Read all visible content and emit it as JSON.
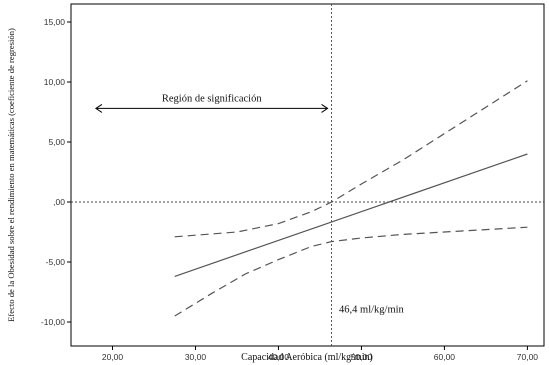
{
  "chart_data": {
    "type": "line",
    "title": "",
    "xlabel": "Capacidad Aeróbica (ml/kg/min)",
    "ylabel": "Efecto de la Obesidad sobre el rendimiento en matemáticas (coeficiente de regresión)",
    "xlim": [
      15,
      72
    ],
    "ylim": [
      -12,
      16.5
    ],
    "x_ticks": [
      20,
      30,
      40,
      50,
      60,
      70
    ],
    "x_tick_labels": [
      "20,00",
      "30,00",
      "40,00",
      "50,00",
      "60,00",
      "70,00"
    ],
    "y_ticks": [
      -10,
      -5,
      0,
      5,
      10,
      15
    ],
    "y_tick_labels": [
      "-10,00",
      "-5,00",
      ",00",
      "5,00",
      "10,00",
      "15,00"
    ],
    "grid": false,
    "series": [
      {
        "role": "estimate",
        "style": "solid",
        "x": [
          27.5,
          70
        ],
        "y": [
          -6.2,
          4.0
        ]
      },
      {
        "role": "upper_ci",
        "style": "dashed",
        "x": [
          27.5,
          35,
          40,
          44,
          46.4,
          50,
          55,
          60,
          65,
          70
        ],
        "y": [
          -2.9,
          -2.5,
          -1.8,
          -0.8,
          0,
          1.5,
          3.5,
          5.7,
          7.9,
          10.1
        ]
      },
      {
        "role": "lower_ci",
        "style": "dashed",
        "x": [
          27.5,
          32,
          36,
          40,
          44,
          46.4,
          50,
          55,
          60,
          65,
          70
        ],
        "y": [
          -9.5,
          -7.6,
          -6.0,
          -4.8,
          -3.7,
          -3.3,
          -3.0,
          -2.7,
          -2.5,
          -2.3,
          -2.1
        ]
      }
    ],
    "reference_lines": {
      "horizontal_y": 0,
      "vertical_x": 46.4
    },
    "annotations": {
      "region_label": "Región de significación",
      "region_from_x": 18,
      "region_to_x": 46.4,
      "region_y": 7.8,
      "threshold_label": "46,4 ml/kg/min",
      "threshold_label_x": 47.3,
      "threshold_label_y": -9.2
    }
  }
}
